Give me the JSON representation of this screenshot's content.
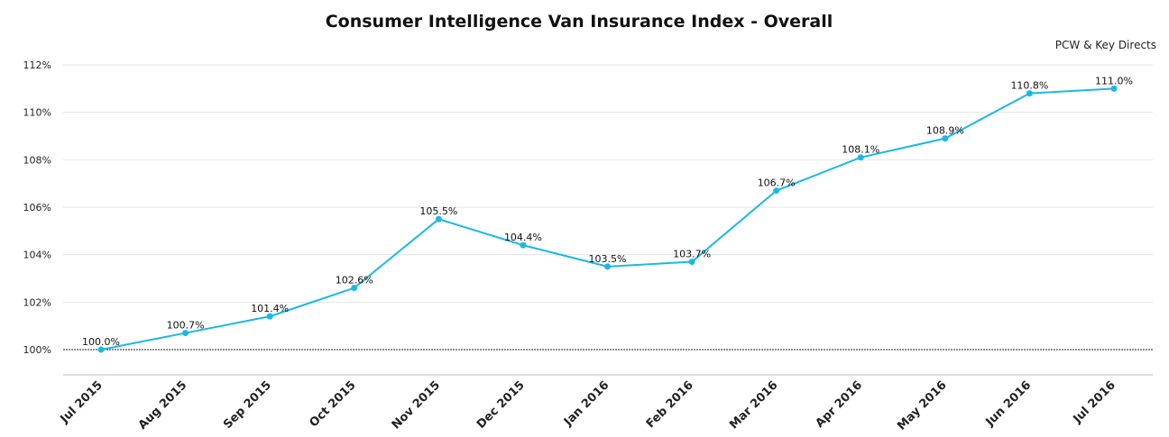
{
  "chart_data": {
    "type": "line",
    "title": "Consumer Intelligence Van Insurance Index - Overall",
    "subtitle": "PCW & Key Directs",
    "categories": [
      "Jul 2015",
      "Aug 2015",
      "Sep 2015",
      "Oct 2015",
      "Nov 2015",
      "Dec 2015",
      "Jan 2016",
      "Feb 2016",
      "Mar 2016",
      "Apr 2016",
      "May 2016",
      "Jun 2016",
      "Jul 2016"
    ],
    "series": [
      {
        "name": "Overall",
        "values": [
          100.0,
          100.7,
          101.4,
          102.6,
          105.5,
          104.4,
          103.5,
          103.7,
          106.7,
          108.1,
          108.9,
          110.8,
          111.0
        ],
        "labels": [
          "100.0%",
          "100.7%",
          "101.4%",
          "102.6%",
          "105.5%",
          "104.4%",
          "103.5%",
          "103.7%",
          "106.7%",
          "108.1%",
          "108.9%",
          "110.8%",
          "111.0%"
        ],
        "color": "#1ab8e6"
      }
    ],
    "yticks": [
      100,
      102,
      104,
      106,
      108,
      110,
      112
    ],
    "ytick_labels": [
      "100%",
      "102%",
      "104%",
      "106%",
      "108%",
      "110%",
      "112%"
    ],
    "ylim": [
      99,
      112
    ],
    "baseline_value": 100,
    "xlabel": "",
    "ylabel": "",
    "grid": true,
    "legend": "none"
  }
}
